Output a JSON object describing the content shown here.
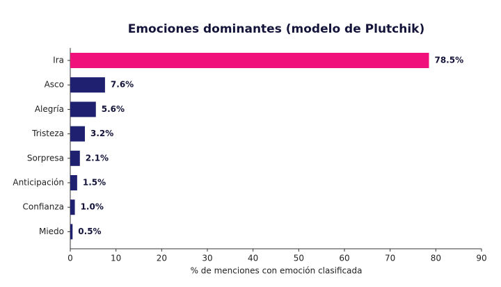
{
  "chart_data": {
    "type": "barh",
    "title": "Emociones dominantes (modelo de Plutchik)",
    "xlabel": "% de menciones con emoción clasificada",
    "categories": [
      "Ira",
      "Asco",
      "Alegría",
      "Tristeza",
      "Sorpresa",
      "Anticipación",
      "Confianza",
      "Miedo"
    ],
    "values": [
      78.5,
      7.6,
      5.6,
      3.2,
      2.1,
      1.5,
      1.0,
      0.5
    ],
    "value_labels": [
      "78.5%",
      "7.6%",
      "5.6%",
      "3.2%",
      "2.1%",
      "1.5%",
      "1.0%",
      "0.5%"
    ],
    "colors": [
      "#f0117a",
      "#1f2170",
      "#1f2170",
      "#1f2170",
      "#1f2170",
      "#1f2170",
      "#1f2170",
      "#1f2170"
    ],
    "xlim": [
      0,
      90
    ],
    "xticks": [
      0,
      10,
      20,
      30,
      40,
      50,
      60,
      70,
      80,
      90
    ],
    "grid": false
  }
}
